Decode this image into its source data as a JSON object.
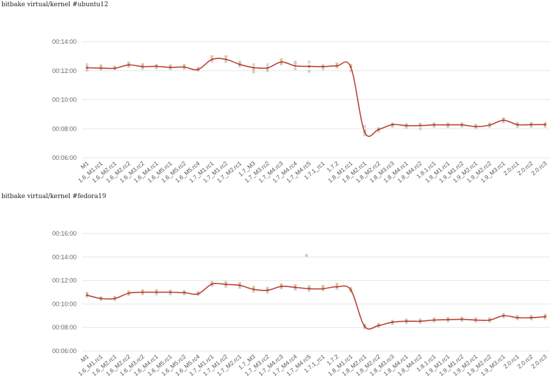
{
  "chart_data": [
    {
      "type": "line",
      "title": "bitbake virtual/kernel #ubuntu12",
      "categories": [
        "M1",
        "1.6_M1.rc1",
        "1.6_M2.rc1",
        "1.6_M2.rc2",
        "1.6_M3.rc2",
        "1.6_M4.rc1",
        "1.6_M5.rc1",
        "1.6_M5.rc2",
        "1.6_M5.rc4",
        "1.7_M1.rc1",
        "1.7_M1.rc2",
        "1.7_M2.rc1",
        "1.7_M3",
        "1.7_M3.rc2",
        "1.7_M4.rc3",
        "1.7_M4.rc4",
        "1.7_M4.rc5",
        "1.7.1_rc1",
        "1.7.2",
        "1.8_M1.rc1",
        "1.8_M2.rc1",
        "1.8_M2.rc2",
        "1.8_M3.rc3",
        "1.8_M4.rc1",
        "1.8_M4.rc2",
        "1.8.1.rc1",
        "1.9_M1.rc1",
        "1.9_M1.rc2",
        "1.9_M2.rc1",
        "1.9_M2.rc2",
        "1.9_M3.rc1",
        "2.0.rc1",
        "2.0.rc2",
        "2.0.rc3"
      ],
      "yticks": [
        "00:06:00",
        "00:08:00",
        "00:10:00",
        "00:12:00",
        "00:14:00"
      ],
      "ylim_seconds": [
        360,
        840
      ],
      "grid": true,
      "series": [
        {
          "color": "#b84035",
          "values_seconds": [
            732,
            731,
            730,
            744,
            737,
            738,
            734,
            735,
            725,
            767,
            767,
            746,
            733,
            732,
            756,
            740,
            738,
            737,
            740,
            735,
            466,
            477,
            497,
            493,
            493,
            496,
            496,
            496,
            489,
            495,
            515,
            497,
            497,
            497
          ]
        }
      ],
      "scatter_samples_seconds": [
        [
          722,
          738,
          745
        ],
        [
          726,
          740
        ],
        [
          728,
          735
        ],
        [
          738,
          752
        ],
        [
          730,
          745
        ],
        [
          732,
          742
        ],
        [
          728,
          740
        ],
        [
          730,
          742
        ],
        [
          722,
          730
        ],
        [
          760,
          778
        ],
        [
          758,
          778
        ],
        [
          740,
          755
        ],
        [
          715,
          726,
          745
        ],
        [
          720,
          728,
          745
        ],
        [
          748,
          765
        ],
        [
          728,
          752,
          756
        ],
        [
          718,
          738,
          756
        ],
        [
          728,
          740
        ],
        [
          735,
          748
        ],
        [
          720,
          742
        ],
        [
          455,
          472,
          490
        ],
        [
          470,
          480
        ],
        [
          490,
          500
        ],
        [
          485,
          497
        ],
        [
          480,
          498
        ],
        [
          490,
          500
        ],
        [
          488,
          500
        ],
        [
          490,
          500
        ],
        [
          484,
          494
        ],
        [
          490,
          500
        ],
        [
          508,
          522
        ],
        [
          490,
          502
        ],
        [
          490,
          502
        ],
        [
          490,
          502
        ]
      ]
    },
    {
      "type": "line",
      "title": "bitbake virtual/kernel #fedora19",
      "categories": [
        "M1",
        "1.6_M1.rc1",
        "1.6_M2.rc1",
        "1.6_M2.rc2",
        "1.6_M3.rc2",
        "1.6_M4.rc1",
        "1.6_M5.rc1",
        "1.6_M5.rc2",
        "1.6_M5.rc4",
        "1.7_M1.rc1",
        "1.7_M1.rc2",
        "1.7_M2.rc1",
        "1.7_M3",
        "1.7_M3.rc2",
        "1.7_M4.rc3",
        "1.7_M4.rc4",
        "1.7_M4.rc5",
        "1.7.1_rc1",
        "1.7.2",
        "1.8_M1.rc1",
        "1.8_M2.rc1",
        "1.8_M2.rc2",
        "1.8_M3.rc3",
        "1.8_M4.rc1",
        "1.8_M4.rc2",
        "1.8.1.rc1",
        "1.9_M1.rc1",
        "1.9_M1.rc2",
        "1.9_M2.rc1",
        "1.9_M2.rc2",
        "1.9_M3.rc1",
        "2.0.rc1",
        "2.0.rc2",
        "2.0.rc3"
      ],
      "yticks": [
        "00:06:00",
        "00:08:00",
        "00:10:00",
        "00:12:00",
        "00:14:00",
        "00:16:00"
      ],
      "ylim_seconds": [
        360,
        960
      ],
      "grid": true,
      "series": [
        {
          "color": "#b84035",
          "values_seconds": [
            645,
            628,
            628,
            655,
            660,
            660,
            660,
            658,
            652,
            702,
            700,
            695,
            675,
            670,
            690,
            685,
            678,
            678,
            688,
            672,
            485,
            490,
            507,
            512,
            512,
            518,
            520,
            522,
            518,
            518,
            540,
            530,
            530,
            535
          ]
        }
      ],
      "scatter_samples_seconds": [
        [
          640,
          655
        ],
        [
          622,
          632
        ],
        [
          622,
          634
        ],
        [
          648,
          662
        ],
        [
          652,
          668
        ],
        [
          652,
          668
        ],
        [
          652,
          666
        ],
        [
          652,
          664
        ],
        [
          648,
          658
        ],
        [
          695,
          710
        ],
        [
          690,
          710
        ],
        [
          685,
          705
        ],
        [
          665,
          685
        ],
        [
          660,
          680
        ],
        [
          682,
          698
        ],
        [
          675,
          694
        ],
        [
          670,
          688
        ],
        [
          672,
          690
        ],
        [
          680,
          700
        ],
        [
          665,
          680
        ],
        [
          478,
          492
        ],
        [
          484,
          496
        ],
        [
          500,
          512
        ],
        [
          506,
          518
        ],
        [
          506,
          518
        ],
        [
          512,
          524
        ],
        [
          514,
          526
        ],
        [
          516,
          528
        ],
        [
          512,
          524
        ],
        [
          512,
          524
        ],
        [
          534,
          546
        ],
        [
          524,
          536
        ],
        [
          524,
          536
        ],
        [
          528,
          542
        ]
      ],
      "outlier_seconds": [
        {
          "category": "1.7_M4.rc4",
          "value": 848
        }
      ]
    }
  ]
}
